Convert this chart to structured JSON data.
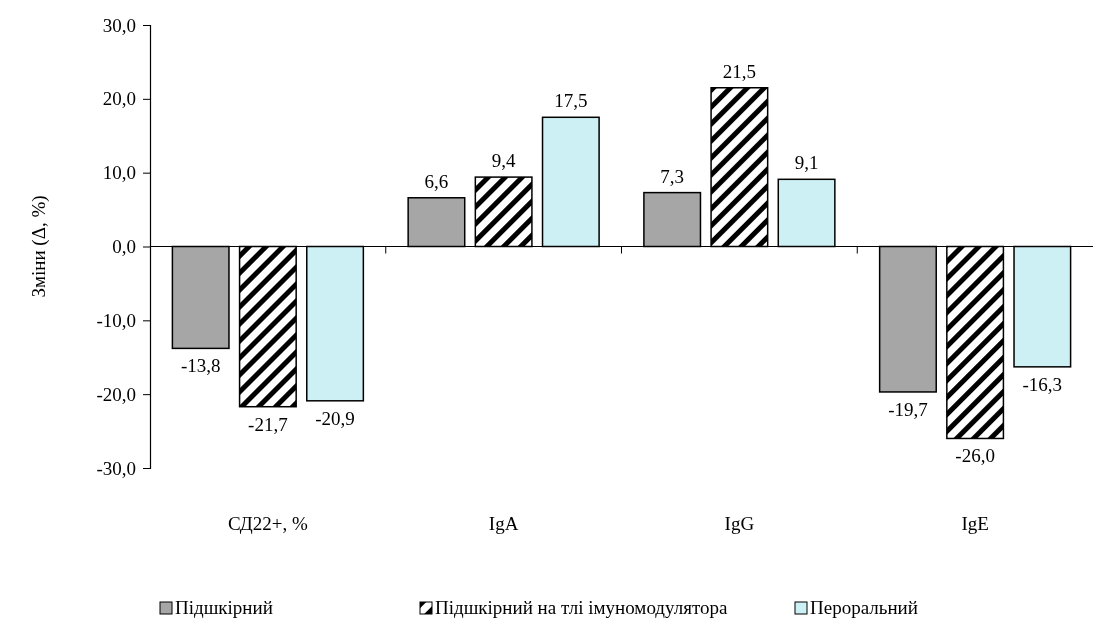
{
  "chart_data": {
    "type": "bar",
    "ylabel": "Зміни (Δ, %)",
    "categories": [
      "СД22+, %",
      "IgA",
      "IgG",
      "IgE"
    ],
    "series": [
      {
        "name": "Підшкірний",
        "color": "#a6a6a6",
        "values": [
          -13.8,
          6.6,
          7.3,
          -19.7
        ],
        "value_labels": [
          "-13,8",
          "6,6",
          "7,3",
          "-19,7"
        ]
      },
      {
        "name": "Підшкірний на тлі імуномодулятора",
        "color": "#000000",
        "values": [
          -21.7,
          9.4,
          21.5,
          -26.0
        ],
        "value_labels": [
          "-21,7",
          "9,4",
          "21,5",
          "-26,0"
        ]
      },
      {
        "name": "Пероральний",
        "color": "#cdf0f5",
        "values": [
          -20.9,
          17.5,
          9.1,
          -16.3
        ],
        "value_labels": [
          "-20,9",
          "17,5",
          "9,1",
          "-16,3"
        ]
      }
    ],
    "ylim": [
      -30,
      30
    ],
    "yticks": [
      {
        "value": -30,
        "label": "-30,0"
      },
      {
        "value": -20,
        "label": "-20,0"
      },
      {
        "value": -10,
        "label": "-10,0"
      },
      {
        "value": 0,
        "label": "0,0"
      },
      {
        "value": 10,
        "label": "10,0"
      },
      {
        "value": 20,
        "label": "20,0"
      },
      {
        "value": 30,
        "label": "30,0"
      }
    ],
    "legend": "bottom"
  }
}
